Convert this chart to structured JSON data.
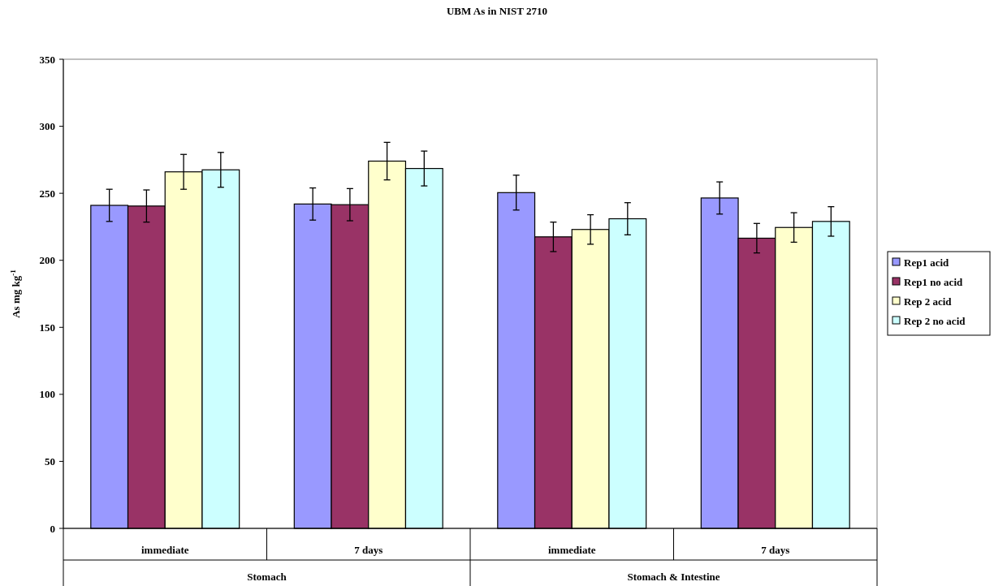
{
  "chart_data": {
    "type": "bar",
    "title": "UBM As in NIST 2710",
    "ylabel": "As mg kg$^{-1}$",
    "categories": [
      "immediate",
      "7 days",
      "immediate",
      "7 days"
    ],
    "annotations": [
      "Stomach",
      "Stomach & Intestine"
    ],
    "series": [
      {
        "name": "Rep1 acid",
        "color": "#9999ff",
        "values": [
          241,
          242,
          250.5,
          246.5
        ],
        "errors": [
          12,
          12,
          13,
          12
        ]
      },
      {
        "name": "Rep1 no acid",
        "color": "#993366",
        "values": [
          240.5,
          241.5,
          217.5,
          216.5
        ],
        "errors": [
          12,
          12,
          11,
          11
        ]
      },
      {
        "name": "Rep 2 acid",
        "color": "#ffffcc",
        "values": [
          266,
          274,
          223,
          224.5
        ],
        "errors": [
          13,
          14,
          11,
          11
        ]
      },
      {
        "name": "Rep 2 no acid",
        "color": "#ccffff",
        "values": [
          267.5,
          268.5,
          231,
          229
        ],
        "errors": [
          13,
          13,
          12,
          11
        ]
      }
    ],
    "ylim": [
      0,
      350
    ],
    "yticks": [
      0,
      50,
      100,
      150,
      200,
      250,
      300,
      350
    ],
    "grid": false,
    "legend": "right"
  }
}
